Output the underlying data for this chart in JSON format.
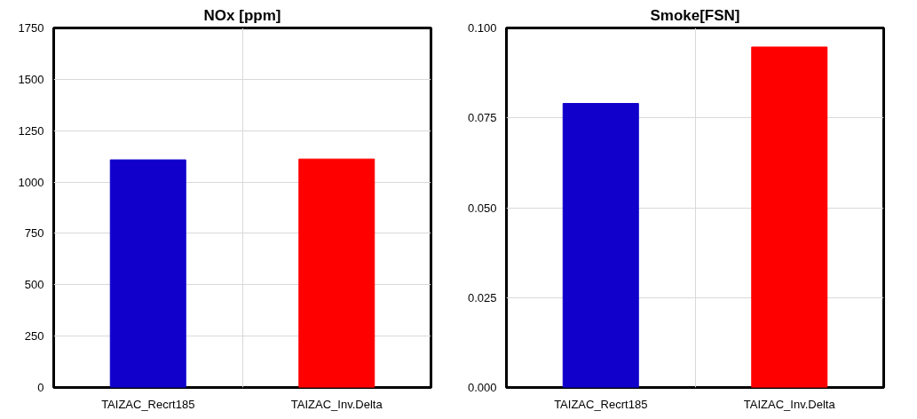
{
  "chart_data": [
    {
      "type": "bar",
      "title": "NOx [ppm]",
      "categories": [
        "TAIZAC_Recrt185",
        "TAIZAC_Inv.Delta"
      ],
      "values": [
        1108,
        1112
      ],
      "colors": [
        "#1100cc",
        "#ff0000"
      ],
      "ylim": [
        0,
        1750
      ],
      "yticks": [
        0,
        250,
        500,
        750,
        1000,
        1250,
        1500,
        1750
      ],
      "grid": true
    },
    {
      "type": "bar",
      "title": "Smoke[FSN]",
      "categories": [
        "TAIZAC_Recrt185",
        "TAIZAC_Inv.Delta"
      ],
      "values": [
        0.079,
        0.0947
      ],
      "colors": [
        "#1100cc",
        "#ff0000"
      ],
      "ylim": [
        0,
        0.1
      ],
      "yticks": [
        {
          "value": 0,
          "label": "0.000"
        },
        {
          "value": 0.025,
          "label": "0.025"
        },
        {
          "value": 0.05,
          "label": "0.050"
        },
        {
          "value": 0.075,
          "label": "0.075"
        },
        {
          "value": 0.1,
          "label": "0.100"
        }
      ],
      "grid": true
    }
  ]
}
